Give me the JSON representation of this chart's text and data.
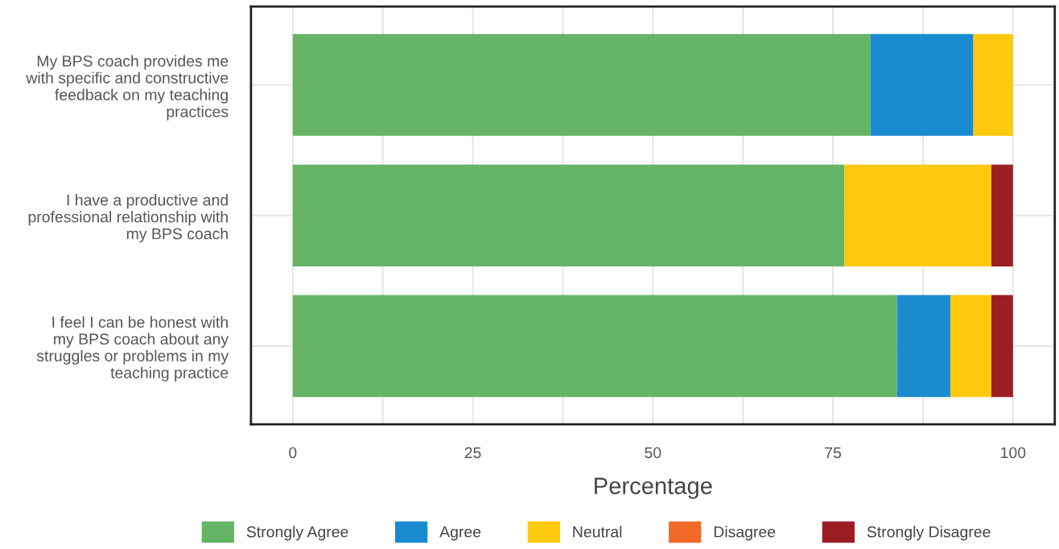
{
  "chart_data": {
    "type": "bar",
    "orientation": "horizontal",
    "stacked": true,
    "xlabel": "Percentage",
    "categories": [
      "My BPS coach provides me\nwith specific and constructive\nfeedback on my teaching\npractices",
      "I have a productive and\nprofessional relationship with\nmy BPS coach",
      "I feel I can be honest with\nmy BPS coach about any\nstruggles or problems in my\nteaching practice"
    ],
    "series": [
      {
        "name": "Strongly Agree",
        "color": "#66b566",
        "values": [
          80.2,
          76.6,
          83.9
        ]
      },
      {
        "name": "Agree",
        "color": "#1b8bd0",
        "values": [
          14.3,
          0,
          7.4
        ]
      },
      {
        "name": "Neutral",
        "color": "#fdc90d",
        "values": [
          5.5,
          20.4,
          5.7
        ]
      },
      {
        "name": "Disagree",
        "color": "#f26a2a",
        "values": [
          0,
          0,
          0
        ]
      },
      {
        "name": "Strongly Disagree",
        "color": "#9c1e24",
        "values": [
          0,
          3.0,
          3.0
        ]
      }
    ],
    "xlim": [
      -5.8,
      105.8
    ],
    "xticks": [
      0,
      {
        "value": 12.5,
        "label": null
      },
      25,
      {
        "value": 37.5,
        "label": null
      },
      50,
      {
        "value": 62.5,
        "label": null
      },
      75,
      {
        "value": 87.5,
        "label": null
      },
      100
    ],
    "grid": true,
    "legend": "bottom"
  }
}
